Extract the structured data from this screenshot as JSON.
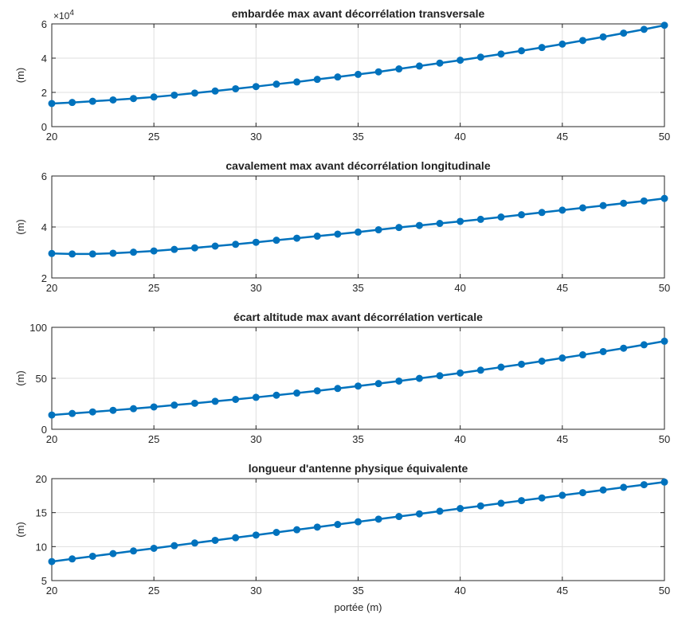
{
  "figure": {
    "xlabel": "portée (m)"
  },
  "chart_data": [
    {
      "type": "line",
      "title": "embardée max avant décorrélation transversale",
      "xlabel": "",
      "ylabel": "(m)",
      "y_exponent_label": "×10^4",
      "xlim": [
        20,
        50
      ],
      "ylim": [
        0,
        6
      ],
      "xticks": [
        20,
        25,
        30,
        35,
        40,
        45,
        50
      ],
      "yticks": [
        0,
        2,
        4,
        6
      ],
      "grid": true,
      "line_color": "#0072BD",
      "series": [
        {
          "x": [
            20,
            21,
            22,
            23,
            24,
            25,
            26,
            27,
            28,
            29,
            30,
            31,
            32,
            33,
            34,
            35,
            36,
            37,
            38,
            39,
            40,
            41,
            42,
            43,
            44,
            45,
            46,
            47,
            48,
            49,
            50
          ],
          "y": [
            1.35,
            1.41,
            1.48,
            1.56,
            1.64,
            1.73,
            1.84,
            1.96,
            2.08,
            2.21,
            2.34,
            2.48,
            2.61,
            2.76,
            2.9,
            3.05,
            3.2,
            3.37,
            3.54,
            3.71,
            3.88,
            4.06,
            4.24,
            4.43,
            4.62,
            4.82,
            5.03,
            5.24,
            5.46,
            5.68,
            5.92
          ]
        }
      ]
    },
    {
      "type": "line",
      "title": "cavalement max avant décorrélation longitudinale",
      "xlabel": "",
      "ylabel": "(m)",
      "xlim": [
        20,
        50
      ],
      "ylim": [
        2,
        6
      ],
      "xticks": [
        20,
        25,
        30,
        35,
        40,
        45,
        50
      ],
      "yticks": [
        2,
        4,
        6
      ],
      "grid": true,
      "line_color": "#0072BD",
      "series": [
        {
          "x": [
            20,
            21,
            22,
            23,
            24,
            25,
            26,
            27,
            28,
            29,
            30,
            31,
            32,
            33,
            34,
            35,
            36,
            37,
            38,
            39,
            40,
            41,
            42,
            43,
            44,
            45,
            46,
            47,
            48,
            49,
            50
          ],
          "y": [
            2.96,
            2.94,
            2.94,
            2.97,
            3.01,
            3.06,
            3.12,
            3.18,
            3.25,
            3.32,
            3.4,
            3.48,
            3.56,
            3.64,
            3.72,
            3.8,
            3.89,
            3.98,
            4.06,
            4.14,
            4.22,
            4.3,
            4.39,
            4.48,
            4.57,
            4.66,
            4.75,
            4.84,
            4.93,
            5.02,
            5.12
          ]
        }
      ]
    },
    {
      "type": "line",
      "title": "écart altitude max avant décorrélation verticale",
      "xlabel": "",
      "ylabel": "(m)",
      "xlim": [
        20,
        50
      ],
      "ylim": [
        0,
        100
      ],
      "xticks": [
        20,
        25,
        30,
        35,
        40,
        45,
        50
      ],
      "yticks": [
        0,
        50,
        100
      ],
      "grid": true,
      "line_color": "#0072BD",
      "series": [
        {
          "x": [
            20,
            21,
            22,
            23,
            24,
            25,
            26,
            27,
            28,
            29,
            30,
            31,
            32,
            33,
            34,
            35,
            36,
            37,
            38,
            39,
            40,
            41,
            42,
            43,
            44,
            45,
            46,
            47,
            48,
            49,
            50
          ],
          "y": [
            14.0,
            15.5,
            17.0,
            18.6,
            20.2,
            21.9,
            23.7,
            25.5,
            27.4,
            29.3,
            31.3,
            33.4,
            35.5,
            37.7,
            40.0,
            42.4,
            44.8,
            47.3,
            49.9,
            52.5,
            55.2,
            58.0,
            60.9,
            63.8,
            66.8,
            69.9,
            73.0,
            76.2,
            79.5,
            82.9,
            86.4
          ]
        }
      ]
    },
    {
      "type": "line",
      "title": "longueur d'antenne physique équivalente",
      "xlabel": "portée (m)",
      "ylabel": "(m)",
      "xlim": [
        20,
        50
      ],
      "ylim": [
        5,
        20
      ],
      "xticks": [
        20,
        25,
        30,
        35,
        40,
        45,
        50
      ],
      "yticks": [
        5,
        10,
        15,
        20
      ],
      "grid": true,
      "line_color": "#0072BD",
      "series": [
        {
          "x": [
            20,
            21,
            22,
            23,
            24,
            25,
            26,
            27,
            28,
            29,
            30,
            31,
            32,
            33,
            34,
            35,
            36,
            37,
            38,
            39,
            40,
            41,
            42,
            43,
            44,
            45,
            46,
            47,
            48,
            49,
            50
          ],
          "y": [
            7.8,
            8.19,
            8.58,
            8.97,
            9.36,
            9.75,
            10.14,
            10.53,
            10.92,
            11.31,
            11.7,
            12.09,
            12.48,
            12.87,
            13.26,
            13.65,
            14.04,
            14.43,
            14.82,
            15.21,
            15.6,
            15.99,
            16.38,
            16.77,
            17.16,
            17.55,
            17.94,
            18.33,
            18.72,
            19.11,
            19.5
          ]
        }
      ]
    }
  ]
}
